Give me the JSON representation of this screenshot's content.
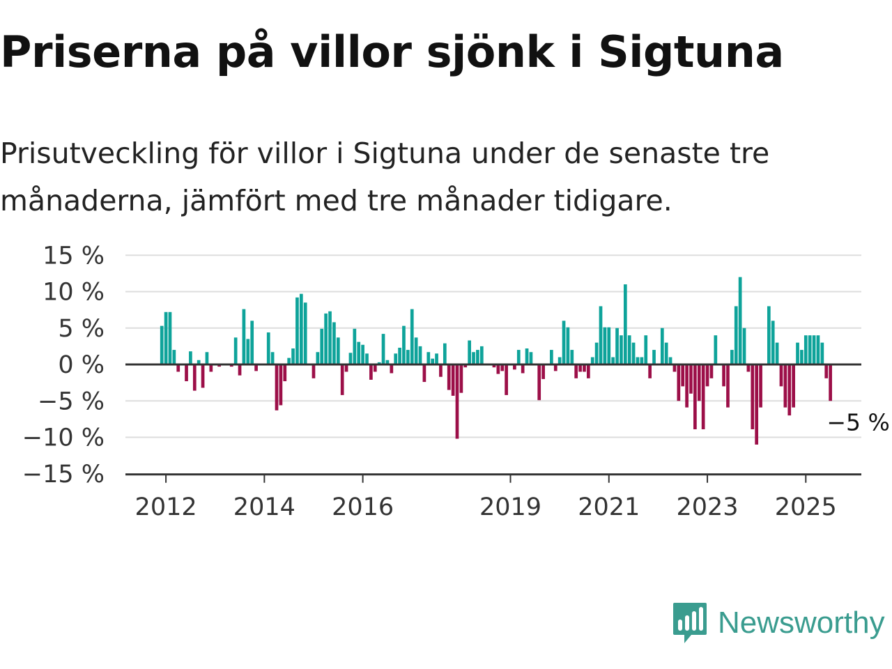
{
  "title": "Priserna på villor sjönk i Sigtuna",
  "subtitle": "Prisutveckling för villor i Sigtuna under de senaste tre månaderna, jämfört med tre månader tidigare.",
  "brand": {
    "name": "Newsworthy",
    "icon": "newsworthy-logo-icon",
    "color": "#3a9c8f"
  },
  "colors": {
    "positive": "#0ea39a",
    "negative": "#9c0f48",
    "grid": "#dddddd",
    "zero": "#333333"
  },
  "chart_data": {
    "type": "bar",
    "ylabel": "",
    "xlabel": "",
    "y_unit": "%",
    "ylim": [
      -15,
      15
    ],
    "y_ticks": [
      15,
      10,
      5,
      0,
      -5,
      -10,
      -15
    ],
    "y_tick_labels": [
      "15 %",
      "10 %",
      "5 %",
      "0 %",
      "−5 %",
      "−10 %",
      "−15 %"
    ],
    "x_tick_labels": [
      {
        "label": "2012",
        "date": "2012-01"
      },
      {
        "label": "2014",
        "date": "2014-01"
      },
      {
        "label": "2016",
        "date": "2016-01"
      },
      {
        "label": "2019",
        "date": "2019-01"
      },
      {
        "label": "2021",
        "date": "2021-01"
      },
      {
        "label": "2023",
        "date": "2023-01"
      },
      {
        "label": "2025",
        "date": "2025-01"
      }
    ],
    "end_label": "−5 %",
    "grid": true,
    "start": "2011-12",
    "values": [
      5.3,
      7.2,
      7.2,
      2.0,
      -1.0,
      0,
      -2.3,
      1.8,
      -3.6,
      0.6,
      -3.2,
      1.7,
      -1.0,
      0,
      -0.3,
      0,
      0,
      -0.3,
      3.7,
      -1.5,
      7.6,
      3.5,
      6.0,
      -0.9,
      0,
      0,
      4.4,
      1.7,
      -6.3,
      -5.6,
      -2.3,
      0.9,
      2.2,
      9.2,
      9.7,
      8.5,
      0,
      -1.9,
      1.7,
      4.9,
      7.0,
      7.3,
      5.8,
      3.7,
      -4.2,
      -1.0,
      1.6,
      4.9,
      3.1,
      2.7,
      1.5,
      -2.1,
      -1.0,
      0.3,
      4.2,
      0.6,
      -1.2,
      1.5,
      2.3,
      5.3,
      2.0,
      7.6,
      3.7,
      2.5,
      -2.4,
      1.7,
      0.8,
      1.5,
      -1.7,
      2.9,
      -3.5,
      -4.3,
      -10.2,
      -3.9,
      -0.4,
      3.3,
      1.7,
      2.0,
      2.5,
      0,
      0,
      -0.4,
      -1.3,
      -0.9,
      -4.2,
      0,
      -0.7,
      2.0,
      -1.2,
      2.2,
      1.7,
      0,
      -4.9,
      -2.0,
      0,
      2.0,
      -0.9,
      1.0,
      6.0,
      5.1,
      2.0,
      -1.9,
      -1.0,
      -1.0,
      -1.9,
      1.0,
      3.0,
      8.0,
      5.1,
      5.1,
      1.0,
      5.0,
      4.0,
      11.0,
      4.0,
      3.0,
      1.0,
      1.0,
      4.0,
      -1.9,
      2.0,
      0,
      5.0,
      3.0,
      1.0,
      -1.0,
      -5.0,
      -3.0,
      -5.9,
      -4.0,
      -8.9,
      -5.0,
      -8.9,
      -3.0,
      -1.9,
      4.0,
      0,
      -3.0,
      -5.9,
      2.0,
      8.0,
      12.0,
      5.0,
      -1.0,
      -8.9,
      -11.0,
      -5.9,
      0,
      8.0,
      6.0,
      3.0,
      -3.0,
      -5.9,
      -7.0,
      -5.9,
      3.0,
      2.0,
      4.0,
      4.0,
      4.0,
      4.0,
      3.0,
      -1.9,
      -5.0
    ]
  }
}
